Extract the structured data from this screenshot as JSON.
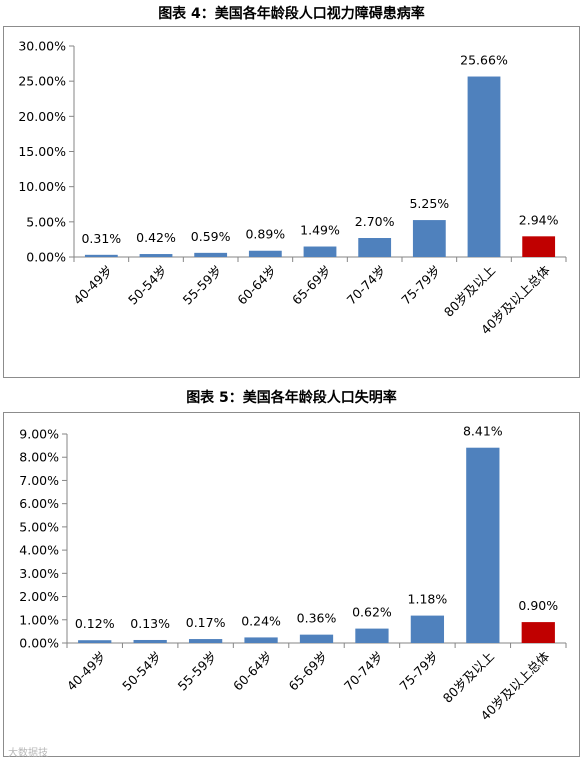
{
  "chart_data": [
    {
      "type": "bar",
      "title": "图表  4：美国各年龄段人口视力障碍患病率",
      "categories": [
        "40-49岁",
        "50-54岁",
        "55-59岁",
        "60-64岁",
        "65-69岁",
        "70-74岁",
        "75-79岁",
        "80岁及以上",
        "40岁及以上总体"
      ],
      "values": [
        0.31,
        0.42,
        0.59,
        0.89,
        1.49,
        2.7,
        5.25,
        25.66,
        2.94
      ],
      "data_labels": [
        "0.31%",
        "0.42%",
        "0.59%",
        "0.89%",
        "1.49%",
        "2.70%",
        "5.25%",
        "25.66%",
        "2.94%"
      ],
      "ylim": [
        0,
        30
      ],
      "yticks": [
        0,
        5,
        10,
        15,
        20,
        25,
        30
      ],
      "ytick_labels": [
        "0.00%",
        "5.00%",
        "10.00%",
        "15.00%",
        "20.00%",
        "25.00%",
        "30.00%"
      ],
      "grid": false,
      "colors": {
        "default": "#4F81BD",
        "highlight": "#C00000"
      },
      "highlight_index": 8
    },
    {
      "type": "bar",
      "title": "图表  5：美国各年龄段人口失明率",
      "categories": [
        "40-49岁",
        "50-54岁",
        "55-59岁",
        "60-64岁",
        "65-69岁",
        "70-74岁",
        "75-79岁",
        "80岁及以上",
        "40岁及以上总体"
      ],
      "values": [
        0.12,
        0.13,
        0.17,
        0.24,
        0.36,
        0.62,
        1.18,
        8.41,
        0.9
      ],
      "data_labels": [
        "0.12%",
        "0.13%",
        "0.17%",
        "0.24%",
        "0.36%",
        "0.62%",
        "1.18%",
        "8.41%",
        "0.90%"
      ],
      "ylim": [
        0,
        9
      ],
      "yticks": [
        0,
        1,
        2,
        3,
        4,
        5,
        6,
        7,
        8,
        9
      ],
      "ytick_labels": [
        "0.00%",
        "1.00%",
        "2.00%",
        "3.00%",
        "4.00%",
        "5.00%",
        "6.00%",
        "7.00%",
        "8.00%",
        "9.00%"
      ],
      "grid": false,
      "colors": {
        "default": "#4F81BD",
        "highlight": "#C00000"
      },
      "highlight_index": 8
    }
  ],
  "watermark": "大数据技"
}
